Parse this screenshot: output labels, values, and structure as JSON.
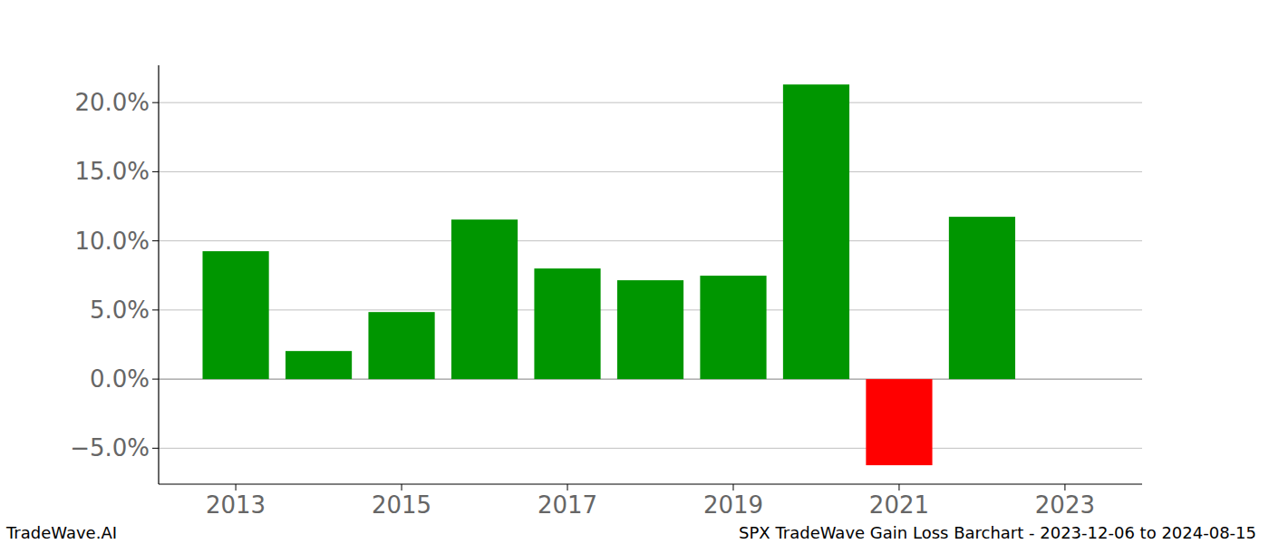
{
  "chart_data": {
    "type": "bar",
    "title": "SPX TradeWave Gain Loss Barchart - 2023-12-06 to 2024-08-15",
    "source": "TradeWave.AI",
    "x": [
      2013,
      2014,
      2015,
      2016,
      2017,
      2018,
      2019,
      2020,
      2021,
      2022
    ],
    "values": [
      9.25,
      2.03,
      4.85,
      11.54,
      8.0,
      7.15,
      7.48,
      21.31,
      -6.23,
      11.74
    ],
    "colors": [
      "#009600",
      "#009600",
      "#009600",
      "#009600",
      "#009600",
      "#009600",
      "#009600",
      "#009600",
      "#ff0000",
      "#009600"
    ],
    "xlim": [
      2012.07,
      2023.93
    ],
    "xticks": [
      2013,
      2015,
      2017,
      2019,
      2021,
      2023
    ],
    "ylim": [
      -7.6,
      22.7
    ],
    "yticks": [
      {
        "value": -5,
        "label": "−5.0%"
      },
      {
        "value": 0,
        "label": "0.0%"
      },
      {
        "value": 5,
        "label": "5.0%"
      },
      {
        "value": 10,
        "label": "10.0%"
      },
      {
        "value": 15,
        "label": "15.0%"
      },
      {
        "value": 20,
        "label": "20.0%"
      }
    ],
    "grid": true
  }
}
